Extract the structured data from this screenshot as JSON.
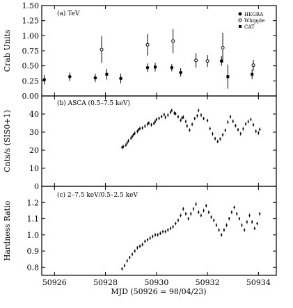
{
  "chart_data": [
    {
      "type": "scatter",
      "panel_label": "(a) TeV",
      "ylabel": "Crab Units",
      "ylim": [
        0,
        1.5
      ],
      "yticks": [
        "0.00",
        "0.25",
        "0.50",
        "0.75",
        "1.00",
        "1.25",
        "1.50"
      ],
      "xlim": [
        50925.5,
        50934.7
      ],
      "legend": [
        "HEGRA",
        "Whipple",
        "CAT"
      ],
      "legend_position": "top-right",
      "series": [
        {
          "name": "HEGRA",
          "points": [
            {
              "x": 50925.6,
              "y": 0.27,
              "err": 0.08
            },
            {
              "x": 50926.6,
              "y": 0.32,
              "err": 0.07
            },
            {
              "x": 50927.6,
              "y": 0.3,
              "err": 0.07
            },
            {
              "x": 50928.6,
              "y": 0.29,
              "err": 0.08
            },
            {
              "x": 50929.65,
              "y": 0.47,
              "err": 0.07
            },
            {
              "x": 50930.6,
              "y": 0.47,
              "err": 0.06
            },
            {
              "x": 50930.95,
              "y": 0.39,
              "err": 0.07
            },
            {
              "x": 50932.55,
              "y": 0.58,
              "err": 0.08
            }
          ]
        },
        {
          "name": "Whipple",
          "points": [
            {
              "x": 50927.85,
              "y": 0.77,
              "err": 0.22
            },
            {
              "x": 50929.65,
              "y": 0.85,
              "err": 0.18
            },
            {
              "x": 50930.65,
              "y": 0.91,
              "err": 0.2
            },
            {
              "x": 50931.55,
              "y": 0.59,
              "err": 0.12
            },
            {
              "x": 50932.0,
              "y": 0.58,
              "err": 0.1
            },
            {
              "x": 50932.6,
              "y": 0.8,
              "err": 0.25
            },
            {
              "x": 50933.8,
              "y": 0.51,
              "err": 0.09
            }
          ]
        },
        {
          "name": "CAT",
          "points": [
            {
              "x": 50928.05,
              "y": 0.36,
              "err": 0.09
            },
            {
              "x": 50929.95,
              "y": 0.48,
              "err": 0.07
            },
            {
              "x": 50932.8,
              "y": 0.32,
              "err": 0.2
            },
            {
              "x": 50933.75,
              "y": 0.36,
              "err": 0.08
            }
          ]
        }
      ]
    },
    {
      "type": "scatter",
      "panel_label": "(b) ASCA (0.5–7.5 keV)",
      "ylabel": "Cnts/s (SIS0+1)",
      "ylim": [
        0,
        50
      ],
      "yticks": [
        "0",
        "10",
        "20",
        "30",
        "40"
      ],
      "xlim": [
        50925.5,
        50934.7
      ],
      "points": [
        {
          "x": 50928.65,
          "y": 21.5
        },
        {
          "x": 50928.7,
          "y": 22.0
        },
        {
          "x": 50928.8,
          "y": 22.8
        },
        {
          "x": 50928.85,
          "y": 24.0
        },
        {
          "x": 50928.9,
          "y": 25.2
        },
        {
          "x": 50929.0,
          "y": 26.6
        },
        {
          "x": 50929.05,
          "y": 27.6
        },
        {
          "x": 50929.1,
          "y": 28.6
        },
        {
          "x": 50929.15,
          "y": 29.4
        },
        {
          "x": 50929.25,
          "y": 30.4
        },
        {
          "x": 50929.3,
          "y": 31.3
        },
        {
          "x": 50929.35,
          "y": 32.0
        },
        {
          "x": 50929.45,
          "y": 32.3
        },
        {
          "x": 50929.55,
          "y": 33.3
        },
        {
          "x": 50929.65,
          "y": 34.4
        },
        {
          "x": 50929.7,
          "y": 35.0
        },
        {
          "x": 50929.8,
          "y": 34.0
        },
        {
          "x": 50929.9,
          "y": 34.8
        },
        {
          "x": 50929.95,
          "y": 35.9
        },
        {
          "x": 50930.0,
          "y": 37.0
        },
        {
          "x": 50930.1,
          "y": 37.6
        },
        {
          "x": 50930.2,
          "y": 38.6
        },
        {
          "x": 50930.3,
          "y": 39.7
        },
        {
          "x": 50930.35,
          "y": 38.2
        },
        {
          "x": 50930.45,
          "y": 39.4
        },
        {
          "x": 50930.55,
          "y": 41.0
        },
        {
          "x": 50930.6,
          "y": 42.0
        },
        {
          "x": 50930.7,
          "y": 40.5
        },
        {
          "x": 50930.75,
          "y": 40.2
        },
        {
          "x": 50930.85,
          "y": 38.5
        },
        {
          "x": 50930.95,
          "y": 36.5
        },
        {
          "x": 50931.0,
          "y": 37.8
        },
        {
          "x": 50931.05,
          "y": 38.3
        },
        {
          "x": 50931.15,
          "y": 35.9
        },
        {
          "x": 50931.2,
          "y": 33.4
        },
        {
          "x": 50931.3,
          "y": 31.1
        },
        {
          "x": 50931.4,
          "y": 34.3
        },
        {
          "x": 50931.5,
          "y": 37.5
        },
        {
          "x": 50931.6,
          "y": 39.0
        },
        {
          "x": 50931.65,
          "y": 42.0
        },
        {
          "x": 50931.75,
          "y": 39.4
        },
        {
          "x": 50931.85,
          "y": 37.5
        },
        {
          "x": 50932.0,
          "y": 36.4
        },
        {
          "x": 50932.1,
          "y": 32.0
        },
        {
          "x": 50932.2,
          "y": 29.0
        },
        {
          "x": 50932.3,
          "y": 26.4
        },
        {
          "x": 50932.4,
          "y": 24.8
        },
        {
          "x": 50932.5,
          "y": 26.2
        },
        {
          "x": 50932.6,
          "y": 28.5
        },
        {
          "x": 50932.7,
          "y": 31.0
        },
        {
          "x": 50932.8,
          "y": 35.5
        },
        {
          "x": 50932.9,
          "y": 38.5
        },
        {
          "x": 50933.0,
          "y": 36.0
        },
        {
          "x": 50933.1,
          "y": 33.5
        },
        {
          "x": 50933.2,
          "y": 31.3
        },
        {
          "x": 50933.3,
          "y": 29.1
        },
        {
          "x": 50933.4,
          "y": 31.8
        },
        {
          "x": 50933.5,
          "y": 34.5
        },
        {
          "x": 50933.6,
          "y": 35.8
        },
        {
          "x": 50933.7,
          "y": 37.0
        },
        {
          "x": 50933.8,
          "y": 34.0
        },
        {
          "x": 50933.9,
          "y": 30.5
        },
        {
          "x": 50934.0,
          "y": 29.5
        },
        {
          "x": 50934.05,
          "y": 31.5
        }
      ]
    },
    {
      "type": "scatter",
      "panel_label": "(c) 2–7.5 keV/0.5–2.5 keV",
      "ylabel": "Hardness Ratio",
      "ylim": [
        0.75,
        1.3
      ],
      "yticks": [
        "0.8",
        "0.9",
        "1.0",
        "1.1",
        "1.2"
      ],
      "xlim": [
        50925.5,
        50934.7
      ],
      "points": [
        {
          "x": 50928.65,
          "y": 0.79
        },
        {
          "x": 50928.75,
          "y": 0.81
        },
        {
          "x": 50928.85,
          "y": 0.84
        },
        {
          "x": 50928.95,
          "y": 0.86
        },
        {
          "x": 50929.05,
          "y": 0.88
        },
        {
          "x": 50929.15,
          "y": 0.9
        },
        {
          "x": 50929.25,
          "y": 0.92
        },
        {
          "x": 50929.35,
          "y": 0.93
        },
        {
          "x": 50929.45,
          "y": 0.94
        },
        {
          "x": 50929.55,
          "y": 0.96
        },
        {
          "x": 50929.65,
          "y": 0.97
        },
        {
          "x": 50929.75,
          "y": 0.98
        },
        {
          "x": 50929.85,
          "y": 0.99
        },
        {
          "x": 50929.95,
          "y": 1.0
        },
        {
          "x": 50930.05,
          "y": 1.0
        },
        {
          "x": 50930.15,
          "y": 1.01
        },
        {
          "x": 50930.25,
          "y": 1.02
        },
        {
          "x": 50930.35,
          "y": 1.02
        },
        {
          "x": 50930.45,
          "y": 1.03
        },
        {
          "x": 50930.55,
          "y": 1.04
        },
        {
          "x": 50930.65,
          "y": 1.05
        },
        {
          "x": 50930.75,
          "y": 1.07
        },
        {
          "x": 50930.85,
          "y": 1.09
        },
        {
          "x": 50930.95,
          "y": 1.12
        },
        {
          "x": 50931.05,
          "y": 1.16
        },
        {
          "x": 50931.15,
          "y": 1.13
        },
        {
          "x": 50931.25,
          "y": 1.1
        },
        {
          "x": 50931.35,
          "y": 1.13
        },
        {
          "x": 50931.45,
          "y": 1.16
        },
        {
          "x": 50931.55,
          "y": 1.19
        },
        {
          "x": 50931.65,
          "y": 1.14
        },
        {
          "x": 50931.75,
          "y": 1.12
        },
        {
          "x": 50931.85,
          "y": 1.15
        },
        {
          "x": 50931.95,
          "y": 1.18
        },
        {
          "x": 50932.05,
          "y": 1.14
        },
        {
          "x": 50932.15,
          "y": 1.11
        },
        {
          "x": 50932.25,
          "y": 1.09
        },
        {
          "x": 50932.35,
          "y": 1.06
        },
        {
          "x": 50932.45,
          "y": 1.03
        },
        {
          "x": 50932.55,
          "y": 1.0
        },
        {
          "x": 50932.65,
          "y": 1.03
        },
        {
          "x": 50932.75,
          "y": 1.06
        },
        {
          "x": 50932.85,
          "y": 1.1
        },
        {
          "x": 50932.95,
          "y": 1.14
        },
        {
          "x": 50933.05,
          "y": 1.17
        },
        {
          "x": 50933.15,
          "y": 1.13
        },
        {
          "x": 50933.25,
          "y": 1.1
        },
        {
          "x": 50933.35,
          "y": 1.06
        },
        {
          "x": 50933.45,
          "y": 1.03
        },
        {
          "x": 50933.55,
          "y": 1.08
        },
        {
          "x": 50933.65,
          "y": 1.12
        },
        {
          "x": 50933.75,
          "y": 1.08
        },
        {
          "x": 50933.85,
          "y": 1.04
        },
        {
          "x": 50933.95,
          "y": 1.07
        },
        {
          "x": 50934.05,
          "y": 1.13
        }
      ]
    }
  ],
  "xaxis": {
    "ticks": [
      "50926",
      "50928",
      "50930",
      "50932",
      "50934"
    ],
    "label": "MJD (50926 = 98/04/23)"
  }
}
